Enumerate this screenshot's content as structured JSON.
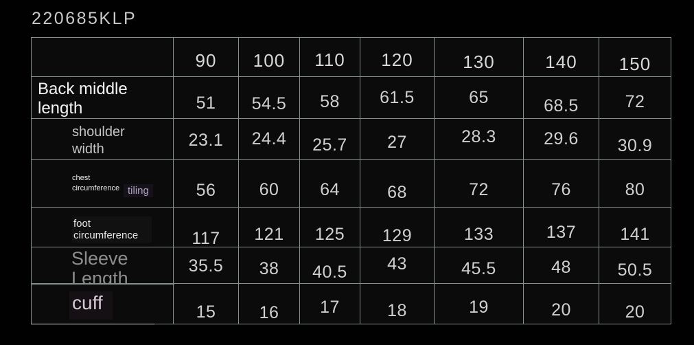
{
  "page": {
    "title": "220685KLP"
  },
  "table": {
    "size_columns": [
      "90",
      "100",
      "110",
      "120",
      "130",
      "140",
      "150"
    ],
    "rows": [
      {
        "key": "back_middle_length",
        "label": "Back middle length",
        "values": [
          "51",
          "54.5",
          "58",
          "61.5",
          "65",
          "68.5",
          "72"
        ]
      },
      {
        "key": "shoulder_width",
        "label": "shoulder width",
        "values": [
          "23.1",
          "24.4",
          "25.7",
          "27",
          "28.3",
          "29.6",
          "30.9"
        ]
      },
      {
        "key": "chest_circumference",
        "label": "chest circumference",
        "label_extra": "tiling",
        "values": [
          "56",
          "60",
          "64",
          "68",
          "72",
          "76",
          "80"
        ]
      },
      {
        "key": "foot_circumference",
        "label": "foot circumference",
        "values": [
          "117",
          "121",
          "125",
          "129",
          "133",
          "137",
          "141"
        ]
      },
      {
        "key": "sleeve_length",
        "label": "Sleeve Length",
        "values": [
          "35.5",
          "38",
          "40.5",
          "43",
          "45.5",
          "48",
          "50.5"
        ]
      },
      {
        "key": "cuff",
        "label": "cuff",
        "values": [
          "15",
          "16",
          "17",
          "18",
          "19",
          "20",
          "20"
        ]
      }
    ],
    "colors": {
      "grid_line": "#85928c",
      "cell_background": "#0b0b0b",
      "title_text": "#c9c9c9",
      "header_text": "#d8d8d8",
      "value_text": "#d0d0d0",
      "primary_label": "#f4f4f4",
      "secondary_label": "#c4c4c4",
      "muted_label": "#8d8d8d",
      "accent_lavender": "#b2a4c4",
      "cuff_label": "#d6c9d6"
    }
  }
}
